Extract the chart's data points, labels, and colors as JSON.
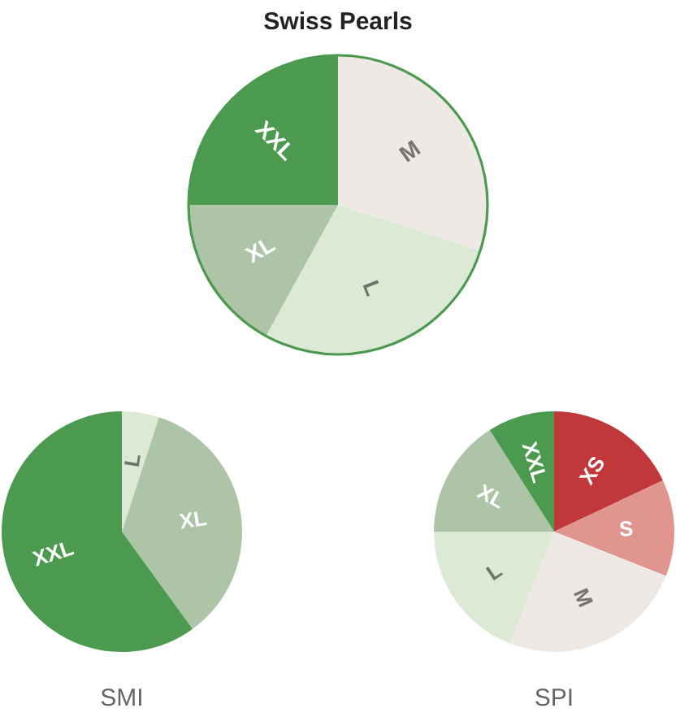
{
  "chart_data": [
    {
      "type": "pie",
      "title": "Swiss Pearls",
      "categories": [
        "M",
        "L",
        "XL",
        "XXL"
      ],
      "values": [
        30,
        28,
        17,
        25
      ],
      "colors": [
        "#eee9e4",
        "#dbe9d5",
        "#adc4a6",
        "#4b9a4f"
      ]
    },
    {
      "type": "pie",
      "title": "SMI",
      "categories": [
        "L",
        "XL",
        "XXL"
      ],
      "values": [
        5,
        35,
        60
      ],
      "colors": [
        "#dbe9d5",
        "#adc4a6",
        "#4b9a4f"
      ]
    },
    {
      "type": "pie",
      "title": "SPI",
      "categories": [
        "XS",
        "S",
        "M",
        "L",
        "XL",
        "XXL"
      ],
      "values": [
        18,
        13,
        25,
        19,
        16,
        9
      ],
      "colors": [
        "#c0383a",
        "#e0968f",
        "#eee9e4",
        "#dbe9d5",
        "#adc4a6",
        "#4b9a4f"
      ]
    }
  ]
}
